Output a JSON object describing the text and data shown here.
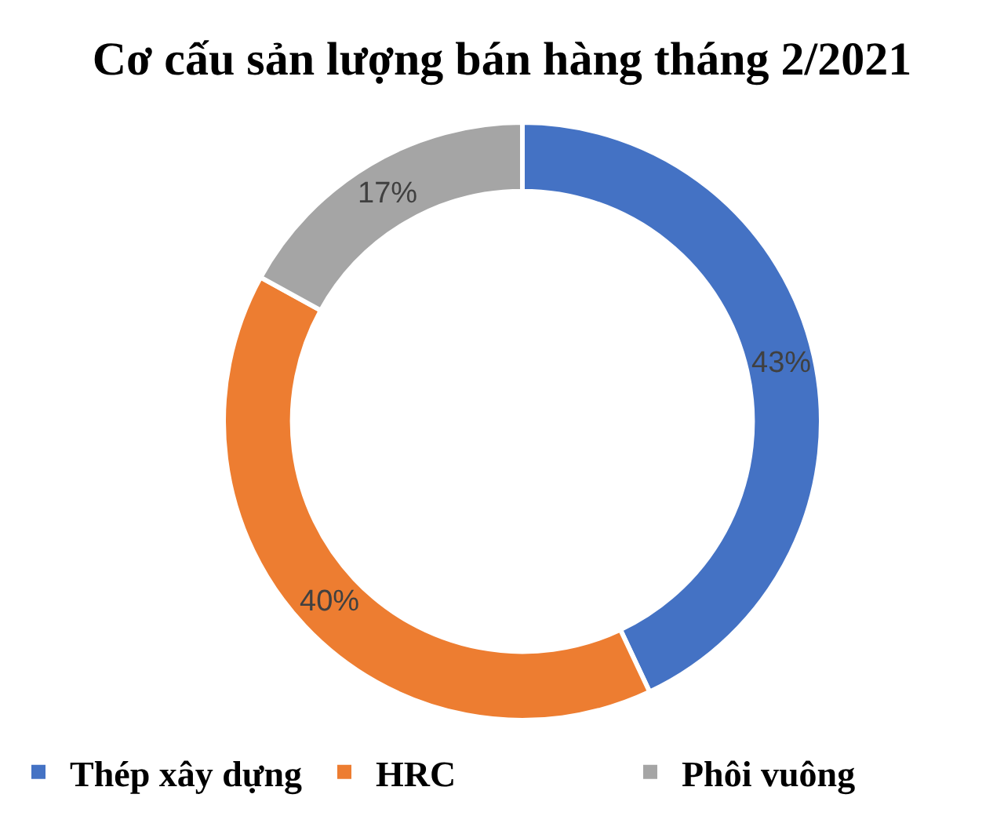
{
  "chart_data": {
    "type": "donut",
    "title": "Cơ cấu sản lượng bán hàng tháng 2/2021",
    "categories": [
      "Thép xây dựng",
      "HRC",
      "Phôi vuông"
    ],
    "values": [
      43,
      40,
      17
    ],
    "colors": [
      "#4472c4",
      "#ed7d31",
      "#a5a5a5"
    ],
    "value_labels": [
      "43%",
      "40%",
      "17%"
    ],
    "legend": "bottom"
  }
}
